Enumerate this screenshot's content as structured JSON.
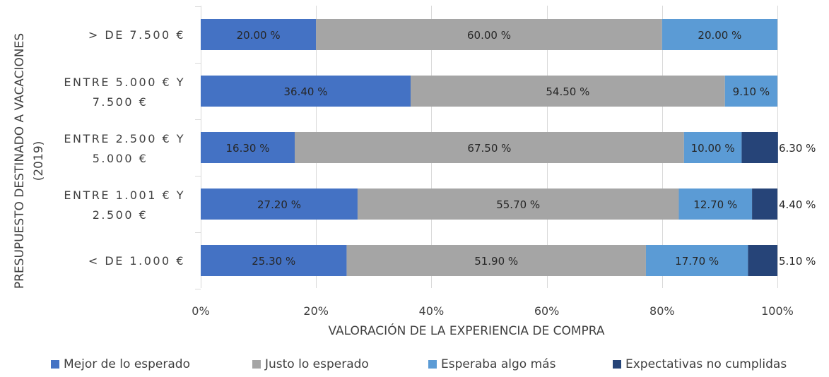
{
  "chart_data": {
    "type": "bar",
    "orientation": "horizontal",
    "stacked": "percent",
    "xlabel": "VALORACIÓN DE LA EXPERIENCIA DE COMPRA",
    "ylabel": "PRESUPUESTO DESTINADO A VACACIONES (2019)",
    "ylabel_lines": [
      "PRESUPUESTO DESTINADO A VACACIONES",
      "(2019)"
    ],
    "xlim": [
      0,
      100
    ],
    "xticks": [
      "0%",
      "20%",
      "40%",
      "60%",
      "80%",
      "100%"
    ],
    "grid": true,
    "legend_position": "bottom",
    "categories": [
      "> DE 7.500 €",
      "ENTRE 5.000 € Y 7.500 €",
      "ENTRE 2.500 € Y 5.000 €",
      "ENTRE 1.001 € Y 2.500 €",
      "< DE 1.000 €"
    ],
    "category_lines": [
      [
        "> DE 7.500 €"
      ],
      [
        "ENTRE 5.000 € Y",
        "7.500 €"
      ],
      [
        "ENTRE 2.500 € Y",
        "5.000 €"
      ],
      [
        "ENTRE 1.001 € Y",
        "2.500 €"
      ],
      [
        "< DE 1.000 €"
      ]
    ],
    "series": [
      {
        "name": "Mejor de lo esperado",
        "color": "#4472c4",
        "values": [
          20.0,
          36.4,
          16.3,
          27.2,
          25.3
        ],
        "labels": [
          "20.00 %",
          "36.40 %",
          "16.30 %",
          "27.20 %",
          "25.30 %"
        ]
      },
      {
        "name": "Justo lo esperado",
        "color": "#a5a5a5",
        "values": [
          60.0,
          54.5,
          67.5,
          55.7,
          51.9
        ],
        "labels": [
          "60.00 %",
          "54.50 %",
          "67.50 %",
          "55.70 %",
          "51.90 %"
        ]
      },
      {
        "name": "Esperaba algo más",
        "color": "#5b9bd5",
        "values": [
          20.0,
          9.1,
          10.0,
          12.7,
          17.7
        ],
        "labels": [
          "20.00 %",
          "9.10 %",
          "10.00 %",
          "12.70 %",
          "17.70 %"
        ]
      },
      {
        "name": "Expectativas no cumplidas",
        "color": "#264478",
        "values": [
          0,
          0,
          6.3,
          4.4,
          5.1
        ],
        "labels": [
          null,
          null,
          "6.30 %",
          "4.40 %",
          "5.10 %"
        ]
      }
    ]
  }
}
